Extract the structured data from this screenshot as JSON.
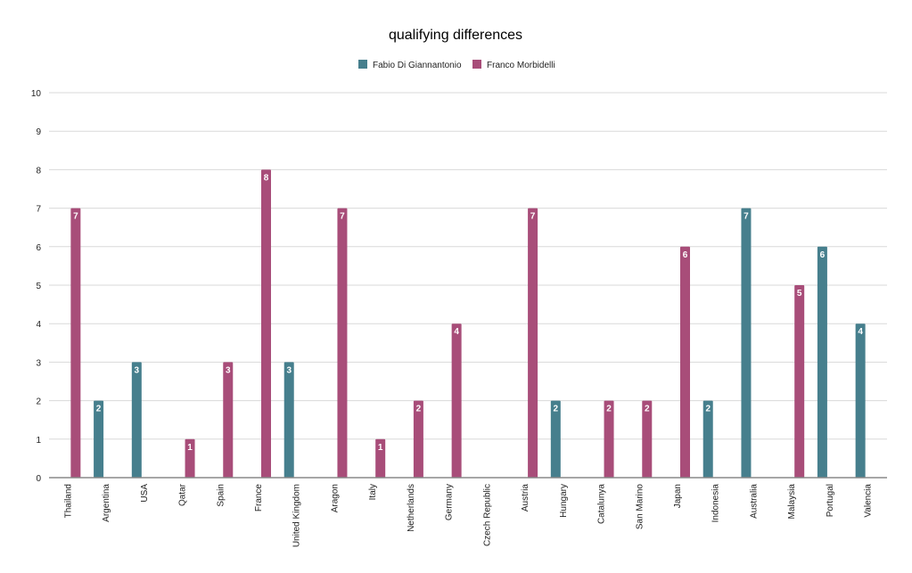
{
  "chart_data": {
    "type": "bar",
    "title": "qualifying differences",
    "xlabel": "",
    "ylabel": "",
    "ylim": [
      0,
      10
    ],
    "yticks": [
      0,
      1,
      2,
      3,
      4,
      5,
      6,
      7,
      8,
      9,
      10
    ],
    "grid": true,
    "legend_position": "top-center",
    "categories": [
      "Thailand",
      "Argentina",
      "USA",
      "Qatar",
      "Spain",
      "France",
      "United Kingdom",
      "Aragon",
      "Italy",
      "Netherlands",
      "Germany",
      "Czech Republic",
      "Austria",
      "Hungary",
      "Catalunya",
      "San Marino",
      "Japan",
      "Indonesia",
      "Australia",
      "Malaysia",
      "Portugal",
      "Valencia"
    ],
    "series": [
      {
        "name": "Fabio Di Giannantonio",
        "color": "#467f8d",
        "values": [
          null,
          2,
          3,
          null,
          null,
          null,
          3,
          null,
          null,
          null,
          null,
          null,
          null,
          2,
          null,
          null,
          null,
          2,
          7,
          null,
          6,
          4
        ]
      },
      {
        "name": "Franco Morbidelli",
        "color": "#a84d79",
        "values": [
          7,
          null,
          null,
          1,
          3,
          8,
          null,
          7,
          1,
          2,
          4,
          null,
          7,
          null,
          2,
          2,
          6,
          null,
          null,
          5,
          null,
          null
        ]
      }
    ]
  }
}
